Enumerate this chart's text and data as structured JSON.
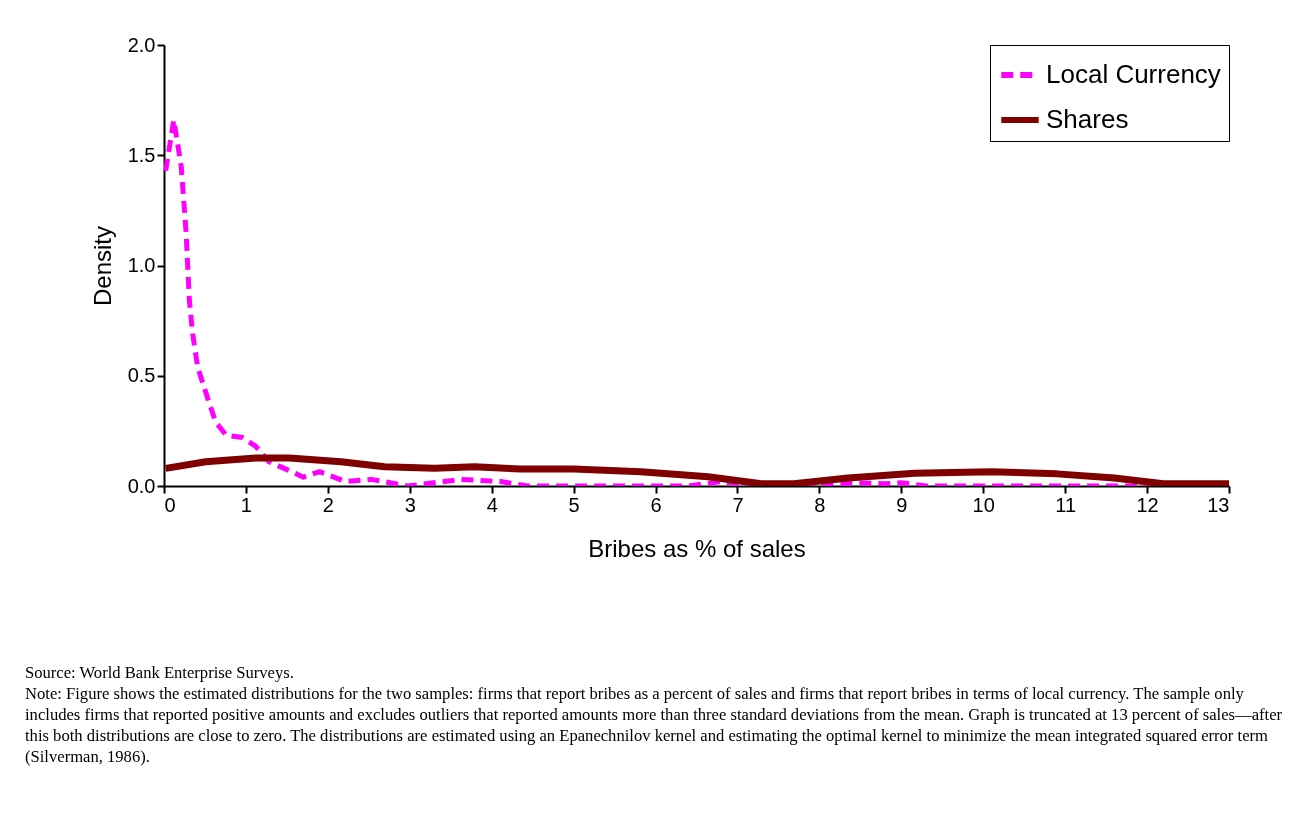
{
  "chart_data": {
    "type": "line",
    "xlabel": "Bribes as % of sales",
    "ylabel": "Density",
    "xlim": [
      0,
      13
    ],
    "xticks": [
      0,
      1,
      2,
      3,
      4,
      5,
      6,
      7,
      8,
      9,
      10,
      11,
      12,
      13
    ],
    "ylim": [
      0,
      2
    ],
    "yticks": [
      {
        "value": 0,
        "label": "0.0"
      },
      {
        "value": 0.5,
        "label": "0.5"
      },
      {
        "value": 1,
        "label": "1.0"
      },
      {
        "value": 1.5,
        "label": "1.5"
      },
      {
        "value": 2,
        "label": "2.0"
      }
    ],
    "grid": false,
    "legend": "top right",
    "series": [
      {
        "name": "Local Currency",
        "color": "#ff00ff",
        "line_style": "dashed",
        "x": [
          0.02,
          0.12,
          0.21,
          0.24,
          0.27,
          0.29,
          0.31,
          0.35,
          0.41,
          0.54,
          0.63,
          0.76,
          0.96,
          1.12,
          1.28,
          1.53,
          1.7,
          1.9,
          2.22,
          2.53,
          2.98,
          3.63,
          4.11,
          4.44,
          6.4,
          6.8,
          7.25,
          8.0,
          8.4,
          8.8,
          9.0,
          9.3,
          13
        ],
        "values": [
          1.43,
          1.66,
          1.45,
          1.3,
          1.15,
          0.99,
          0.84,
          0.69,
          0.54,
          0.39,
          0.29,
          0.23,
          0.22,
          0.18,
          0.11,
          0.07,
          0.04,
          0.065,
          0.02,
          0.03,
          0,
          0.03,
          0.02,
          0,
          0,
          0.02,
          0,
          0,
          0.015,
          0.01,
          0.015,
          0,
          0
        ]
      },
      {
        "name": "Shares",
        "color": "#800000",
        "line_style": "solid",
        "x": [
          0.02,
          0.51,
          1.12,
          1.53,
          2.16,
          2.69,
          3.3,
          3.79,
          4.36,
          5.0,
          5.82,
          6.64,
          7.29,
          7.69,
          8.35,
          9.16,
          10.1,
          10.9,
          11.6,
          12.2,
          13
        ],
        "values": [
          0.08,
          0.11,
          0.127,
          0.127,
          0.11,
          0.087,
          0.08,
          0.087,
          0.077,
          0.077,
          0.065,
          0.042,
          0.01,
          0.01,
          0.036,
          0.058,
          0.065,
          0.055,
          0.036,
          0.01,
          0.01
        ]
      }
    ],
    "annotations": [
      "Source: World Bank Enterprise Surveys.",
      "Note: Figure shows the estimated distributions for the two samples: firms that report bribes as a percent of sales and firms that report bribes in terms of local currency.  The sample only includes firms that reported positive amounts and excludes outliers that reported amounts more than three standard deviations from the mean.  Graph is truncated at 13 percent of sales—after this both distributions are close to zero.  The distributions are estimated using an Epanechnilov kernel and estimating the optimal kernel to minimize the mean integrated squared error term (Silverman, 1986)."
    ]
  }
}
